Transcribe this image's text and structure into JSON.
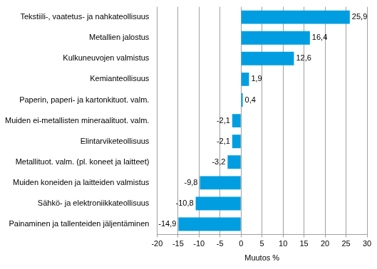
{
  "chart_data": {
    "type": "bar",
    "orientation": "horizontal",
    "x_label": "Muutos %",
    "categories": [
      "Tekstiili-, vaatetus- ja nahkateollisuus",
      "Metallien jalostus",
      "Kulkuneuvojen valmistus",
      "Kemianteollisuus",
      "Paperin, paperi- ja kartonkituot. valm.",
      "Muiden ei-metallisten mineraalituot. valm.",
      "Elintarviketeollisuus",
      "Metallituot. valm. (pl. koneet ja laitteet)",
      "Muiden koneiden ja laitteiden valmistus",
      "Sähkö- ja elektroniikkateollisuus",
      "Painaminen ja tallenteiden jäljentäminen"
    ],
    "values": [
      25.9,
      16.4,
      12.6,
      1.9,
      0.4,
      -2.1,
      -2.1,
      -3.2,
      -9.8,
      -10.8,
      -14.9
    ],
    "value_labels": [
      "25,9",
      "16,4",
      "12,6",
      "1,9",
      "0,4",
      "-2,1",
      "-2,1",
      "-3,2",
      "-9,8",
      "-10,8",
      "-14,9"
    ],
    "data_labels": true,
    "color": "#009ee0",
    "xlim": [
      -20,
      30
    ],
    "xticks": [
      -20,
      -15,
      -10,
      -5,
      0,
      5,
      10,
      15,
      20,
      25,
      30
    ],
    "grid": true
  }
}
